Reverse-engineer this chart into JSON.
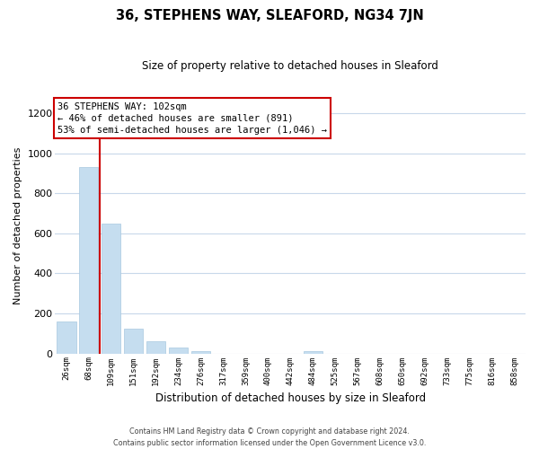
{
  "title": "36, STEPHENS WAY, SLEAFORD, NG34 7JN",
  "subtitle": "Size of property relative to detached houses in Sleaford",
  "xlabel": "Distribution of detached houses by size in Sleaford",
  "ylabel": "Number of detached properties",
  "bar_labels": [
    "26sqm",
    "68sqm",
    "109sqm",
    "151sqm",
    "192sqm",
    "234sqm",
    "276sqm",
    "317sqm",
    "359sqm",
    "400sqm",
    "442sqm",
    "484sqm",
    "525sqm",
    "567sqm",
    "608sqm",
    "650sqm",
    "692sqm",
    "733sqm",
    "775sqm",
    "816sqm",
    "858sqm"
  ],
  "bar_values": [
    160,
    930,
    650,
    125,
    60,
    28,
    12,
    0,
    0,
    0,
    0,
    10,
    0,
    0,
    0,
    0,
    0,
    0,
    0,
    0,
    0
  ],
  "bar_color": "#c5ddef",
  "bar_edge_color": "#a8c8e0",
  "marker_line_color": "#cc0000",
  "annotation_line1": "36 STEPHENS WAY: 102sqm",
  "annotation_line2": "← 46% of detached houses are smaller (891)",
  "annotation_line3": "53% of semi-detached houses are larger (1,046) →",
  "annotation_box_color": "#ffffff",
  "annotation_box_edge": "#cc0000",
  "ylim": [
    0,
    1280
  ],
  "yticks": [
    0,
    200,
    400,
    600,
    800,
    1000,
    1200
  ],
  "footer_line1": "Contains HM Land Registry data © Crown copyright and database right 2024.",
  "footer_line2": "Contains public sector information licensed under the Open Government Licence v3.0.",
  "background_color": "#ffffff",
  "grid_color": "#c8d8ea"
}
